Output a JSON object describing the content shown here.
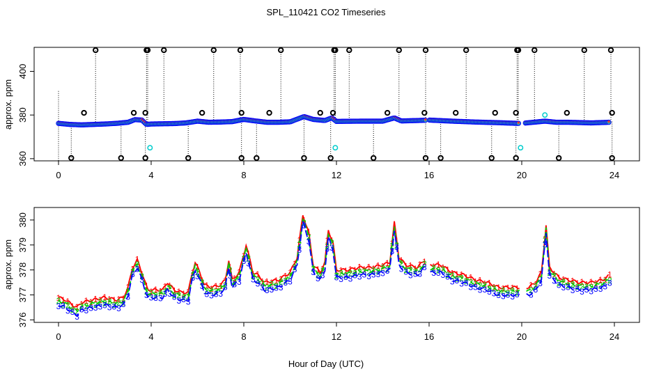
{
  "chart_data": {
    "title": "SPL_110421  CO2 Timeseries",
    "xlabel": "Hour of Day (UTC)",
    "x_ticks": [
      0,
      4,
      8,
      12,
      16,
      20,
      24
    ],
    "colors": {
      "series1": "#ff0000",
      "series2": "#00cc00",
      "series3": "#0000ff",
      "flag": "#000000",
      "cyan": "#00cccc"
    },
    "panels": [
      {
        "type": "scatter",
        "ylabel": "approx. ppm",
        "ylim": [
          359,
          411
        ],
        "y_ticks": [
          360,
          380,
          400
        ],
        "baseline": [
          [
            0,
            376.5
          ],
          [
            0.5,
            376
          ],
          [
            1,
            375.8
          ],
          [
            1.5,
            376
          ],
          [
            2,
            376.2
          ],
          [
            2.5,
            376.5
          ],
          [
            3,
            377
          ],
          [
            3.3,
            378.2
          ],
          [
            3.6,
            378
          ],
          [
            3.8,
            376
          ],
          [
            4,
            376.2
          ],
          [
            5,
            376.4
          ],
          [
            5.5,
            376.7
          ],
          [
            6,
            377.5
          ],
          [
            6.5,
            377
          ],
          [
            7,
            377.1
          ],
          [
            7.5,
            377.3
          ],
          [
            8,
            378.3
          ],
          [
            8.5,
            377.6
          ],
          [
            9,
            377
          ],
          [
            9.5,
            377
          ],
          [
            10,
            377.2
          ],
          [
            10.6,
            379.6
          ],
          [
            11,
            378.3
          ],
          [
            11.5,
            377.8
          ],
          [
            11.8,
            379
          ],
          [
            12,
            377.4
          ],
          [
            13,
            377.5
          ],
          [
            14,
            377.5
          ],
          [
            14.5,
            379
          ],
          [
            14.8,
            377.6
          ],
          [
            15.5,
            377.8
          ],
          [
            16,
            378
          ],
          [
            17,
            377.5
          ],
          [
            18,
            377.1
          ],
          [
            19,
            376.8
          ],
          [
            19.8,
            376.5
          ],
          [
            20,
            376.5
          ],
          [
            21,
            377.5
          ],
          [
            21.5,
            377
          ],
          [
            22,
            377
          ],
          [
            23,
            376.7
          ],
          [
            23.8,
            377
          ]
        ],
        "flag_high_x": [
          1.6,
          3.8,
          3.85,
          4.55,
          6.7,
          7.85,
          9.6,
          11.9,
          11.95,
          12.55,
          14.7,
          15.85,
          17.6,
          19.8,
          19.85,
          20.55,
          22.7,
          23.85
        ],
        "flag_mid_x": [
          1.1,
          3.25,
          3.75,
          6.2,
          7.9,
          9.1,
          11.3,
          11.85,
          14.2,
          15.8,
          17.15,
          18.85,
          19.75,
          21.95,
          23.9
        ],
        "flag_low_x": [
          0.55,
          2.7,
          3.75,
          5.6,
          7.9,
          8.55,
          10.6,
          11.75,
          13.6,
          15.85,
          16.5,
          18.7,
          19.75,
          21.6,
          23.9
        ],
        "cyan_points": [
          [
            3.95,
            365
          ],
          [
            11.95,
            365
          ],
          [
            19.95,
            365
          ],
          [
            21.0,
            380
          ]
        ]
      },
      {
        "type": "line",
        "ylabel": "approx. ppm",
        "ylim": [
          375.9,
          380.5
        ],
        "y_ticks": [
          376,
          377,
          378,
          379,
          380
        ],
        "series": [
          {
            "name": "1",
            "label_char": "1",
            "color": "#ff0000"
          },
          {
            "name": "2",
            "label_char": "2",
            "color": "#00cc00"
          },
          {
            "name": "3",
            "label_char": "3",
            "color": "#0000ff"
          }
        ],
        "baseline": [
          [
            0,
            376.6
          ],
          [
            0.3,
            376.5
          ],
          [
            0.6,
            376.3
          ],
          [
            0.8,
            376.2
          ],
          [
            1,
            376.4
          ],
          [
            1.5,
            376.5
          ],
          [
            2,
            376.6
          ],
          [
            2.5,
            376.5
          ],
          [
            2.8,
            376.6
          ],
          [
            3,
            377
          ],
          [
            3.2,
            377.8
          ],
          [
            3.4,
            378.1
          ],
          [
            3.6,
            377.6
          ],
          [
            3.85,
            376.9
          ],
          [
            4.1,
            376.9
          ],
          [
            4.5,
            376.9
          ],
          [
            4.7,
            377.2
          ],
          [
            5,
            376.9
          ],
          [
            5.3,
            376.8
          ],
          [
            5.6,
            376.8
          ],
          [
            5.75,
            377.5
          ],
          [
            5.9,
            378
          ],
          [
            6.1,
            377.6
          ],
          [
            6.3,
            377.1
          ],
          [
            6.6,
            377
          ],
          [
            7,
            377.1
          ],
          [
            7.2,
            377.3
          ],
          [
            7.35,
            378.1
          ],
          [
            7.5,
            377.3
          ],
          [
            7.8,
            377.6
          ],
          [
            8.1,
            378.7
          ],
          [
            8.4,
            377.6
          ],
          [
            8.6,
            377.5
          ],
          [
            8.9,
            377.2
          ],
          [
            9.5,
            377.3
          ],
          [
            10,
            377.6
          ],
          [
            10.3,
            378.2
          ],
          [
            10.55,
            379.9
          ],
          [
            10.8,
            379.2
          ],
          [
            11,
            377.9
          ],
          [
            11.3,
            377.6
          ],
          [
            11.5,
            378
          ],
          [
            11.65,
            379.3
          ],
          [
            11.85,
            378.8
          ],
          [
            12,
            377.7
          ],
          [
            12.5,
            377.7
          ],
          [
            13,
            377.8
          ],
          [
            13.5,
            377.8
          ],
          [
            14,
            377.9
          ],
          [
            14.3,
            378
          ],
          [
            14.5,
            379.6
          ],
          [
            14.7,
            378.2
          ],
          [
            15,
            377.9
          ],
          [
            15.5,
            377.8
          ],
          [
            15.8,
            378.1
          ],
          [
            16,
            377.9
          ],
          [
            16.5,
            377.9
          ],
          [
            17,
            377.6
          ],
          [
            17.5,
            377.5
          ],
          [
            18,
            377.3
          ],
          [
            18.5,
            377.2
          ],
          [
            19,
            377
          ],
          [
            19.5,
            377
          ],
          [
            20.3,
            377
          ],
          [
            20.6,
            377.2
          ],
          [
            20.85,
            377.6
          ],
          [
            21.05,
            379.5
          ],
          [
            21.2,
            377.8
          ],
          [
            21.6,
            377.4
          ],
          [
            22,
            377.3
          ],
          [
            22.5,
            377.2
          ],
          [
            23,
            377.2
          ],
          [
            23.5,
            377.3
          ],
          [
            23.8,
            377.5
          ]
        ],
        "offsets": [
          0.3,
          0.15,
          0.0
        ],
        "gaps": [
          [
            15.85,
            16.05
          ],
          [
            19.95,
            20.2
          ]
        ]
      }
    ]
  }
}
